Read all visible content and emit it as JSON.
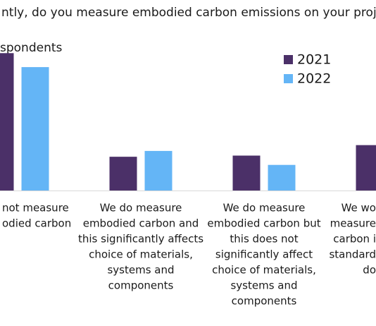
{
  "chart_data": {
    "type": "bar",
    "title": "ntly, do you measure embodied carbon emissions on your proje",
    "subtitle": "spondents",
    "categories": [
      [
        "not measure",
        "odied carbon"
      ],
      [
        "We do measure",
        "embodied carbon and",
        "this significantly affects",
        "choice of materials,",
        "systems and",
        "components"
      ],
      [
        "We do measure",
        "embodied carbon but",
        "this does not",
        "significantly affect",
        "choice of materials,",
        "systems and",
        "components"
      ],
      [
        "We wo",
        "measure",
        "carbon i",
        "standard",
        "do"
      ]
    ],
    "series": [
      {
        "name": "2021",
        "color": "#4b3068",
        "values": [
          59,
          14.5,
          15,
          19.5
        ]
      },
      {
        "name": "2022",
        "color": "#64b5f6",
        "values": [
          53,
          17,
          11,
          null
        ]
      }
    ],
    "ylim": [
      0,
      70
    ]
  }
}
